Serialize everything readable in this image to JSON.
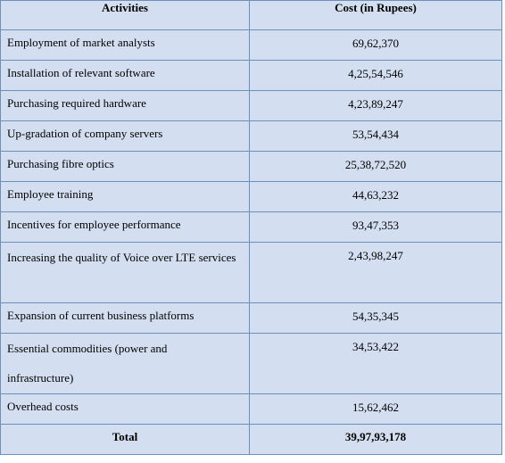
{
  "table": {
    "headers": {
      "activity": "Activities",
      "cost": "Cost (in Rupees)"
    },
    "rows": [
      {
        "activity": "Employment of market analysts",
        "cost": "69,62,370"
      },
      {
        "activity": "Installation of relevant software",
        "cost": "4,25,54,546"
      },
      {
        "activity": "Purchasing required hardware",
        "cost": "4,23,89,247"
      },
      {
        "activity": "Up-gradation of company servers",
        "cost": "53,54,434"
      },
      {
        "activity": "Purchasing fibre optics",
        "cost": "25,38,72,520"
      },
      {
        "activity": "Employee training",
        "cost": "44,63,232"
      },
      {
        "activity": "Incentives for employee performance",
        "cost": "93,47,353"
      },
      {
        "activity": "Increasing the quality of Voice over LTE services",
        "cost": "2,43,98,247"
      },
      {
        "activity": "Expansion of current business platforms",
        "cost": "54,35,345"
      },
      {
        "activity": "Essential commodities (power and infrastructure)",
        "cost": "34,53,422"
      },
      {
        "activity": "Overhead costs",
        "cost": "15,62,462"
      }
    ],
    "total": {
      "label": "Total",
      "cost": "39,97,93,178"
    }
  }
}
